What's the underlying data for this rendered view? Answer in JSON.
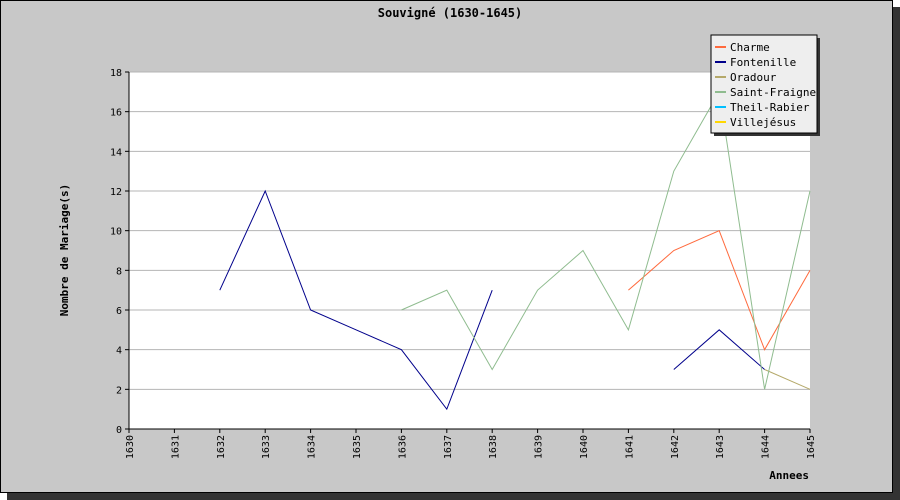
{
  "chart_data": {
    "type": "line",
    "title": "Souvigné (1630-1645)",
    "xlabel": "Annees",
    "ylabel": "Nombre de Mariage(s)",
    "x": [
      1630,
      1631,
      1632,
      1633,
      1634,
      1635,
      1636,
      1637,
      1638,
      1639,
      1640,
      1641,
      1642,
      1643,
      1644,
      1645
    ],
    "ylim": [
      0,
      18
    ],
    "yticks": [
      0,
      2,
      4,
      6,
      8,
      10,
      12,
      14,
      16,
      18
    ],
    "grid": "horizontal",
    "legend_position": "top-right",
    "series": [
      {
        "name": "Charme",
        "color": "#ff6a3d",
        "values": [
          null,
          null,
          null,
          null,
          null,
          null,
          null,
          null,
          null,
          null,
          null,
          7,
          9,
          10,
          4,
          8
        ]
      },
      {
        "name": "Fontenille",
        "color": "#00008b",
        "values": [
          null,
          null,
          7,
          12,
          6,
          5,
          4,
          1,
          7,
          null,
          null,
          null,
          3,
          5,
          3,
          null
        ]
      },
      {
        "name": "Oradour",
        "color": "#b5a96a",
        "values": [
          null,
          null,
          null,
          null,
          null,
          null,
          null,
          null,
          null,
          null,
          null,
          null,
          null,
          null,
          3,
          2
        ]
      },
      {
        "name": "Saint-Fraigne",
        "color": "#8fbc8f",
        "values": [
          null,
          null,
          null,
          null,
          null,
          null,
          6,
          7,
          3,
          7,
          9,
          5,
          13,
          17,
          2,
          12
        ]
      },
      {
        "name": "Theil-Rabier",
        "color": "#00bfff",
        "values": [
          null,
          null,
          null,
          null,
          null,
          null,
          null,
          null,
          null,
          null,
          null,
          null,
          null,
          null,
          null,
          null
        ]
      },
      {
        "name": "Villejésus",
        "color": "#ffd700",
        "values": [
          null,
          null,
          null,
          null,
          null,
          null,
          null,
          null,
          null,
          null,
          null,
          null,
          null,
          null,
          null,
          null
        ]
      }
    ]
  }
}
